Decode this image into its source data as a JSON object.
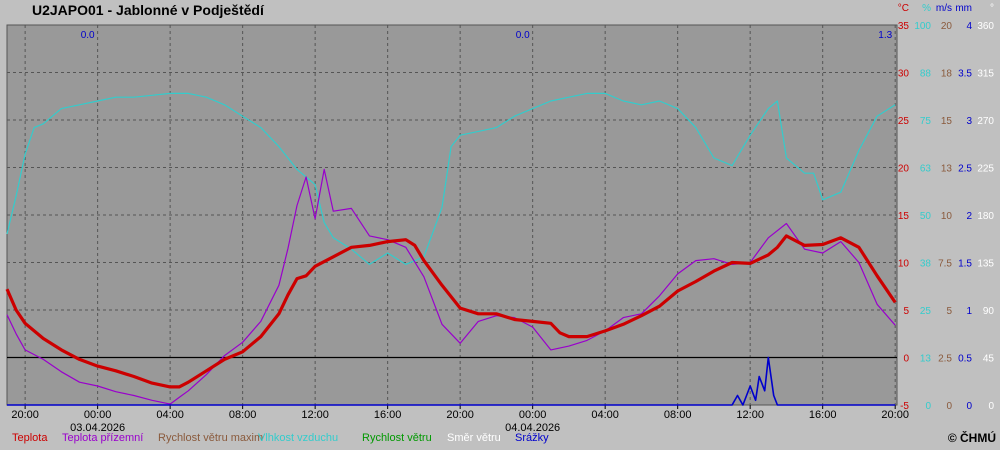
{
  "station": {
    "title": "U2JAPO01 - Jablonné v Podještědí"
  },
  "logo": "© ČHMÚ",
  "chart_data": {
    "type": "line",
    "x_unit": "hours since 2026-04-02 19:00",
    "xlim": [
      0,
      49.1
    ],
    "x_ticks": [
      {
        "x": 1,
        "label": "20:00"
      },
      {
        "x": 5,
        "label": "00:00"
      },
      {
        "x": 9,
        "label": "04:00"
      },
      {
        "x": 13,
        "label": "08:00"
      },
      {
        "x": 17,
        "label": "12:00"
      },
      {
        "x": 21,
        "label": "16:00"
      },
      {
        "x": 25,
        "label": "20:00"
      },
      {
        "x": 29,
        "label": "00:00"
      },
      {
        "x": 33,
        "label": "04:00"
      },
      {
        "x": 37,
        "label": "08:00"
      },
      {
        "x": 41,
        "label": "12:00"
      },
      {
        "x": 45,
        "label": "16:00"
      },
      {
        "x": 49,
        "label": "20:00"
      }
    ],
    "date_labels": [
      {
        "x": 5,
        "label": "03.04.2026"
      },
      {
        "x": 29,
        "label": "04.04.2026"
      }
    ],
    "ylim": [
      -5,
      35
    ],
    "grid": true,
    "precip_totals": [
      {
        "x": 5,
        "label": "0.0"
      },
      {
        "x": 29,
        "label": "0.0"
      },
      {
        "x": 49,
        "label": "1.3"
      }
    ],
    "axis_units": [
      {
        "label": "°C",
        "color": "#cc0000"
      },
      {
        "label": "%",
        "color": "#33cccc"
      },
      {
        "label": "m/s",
        "color": "#0000cc"
      },
      {
        "label": "mm",
        "color": "#0000cc"
      },
      {
        "label": "°",
        "color": "#ffffff"
      }
    ],
    "y_axes": [
      {
        "color": "#cc0000",
        "ticks": [
          "35",
          "30",
          "25",
          "20",
          "15",
          "10",
          "5",
          "0",
          "-5"
        ]
      },
      {
        "color": "#33cccc",
        "ticks": [
          "100",
          "88",
          "75",
          "63",
          "50",
          "38",
          "25",
          "13",
          "0"
        ]
      },
      {
        "color": "#8a5a3c",
        "ticks": [
          "20",
          "18",
          "15",
          "13",
          "10",
          "7.5",
          "5",
          "2.5",
          "0"
        ]
      },
      {
        "color": "#0000cc",
        "ticks": [
          "4",
          "3.5",
          "3",
          "2.5",
          "2",
          "1.5",
          "1",
          "0.5",
          "0"
        ]
      },
      {
        "color": "#ffffff",
        "ticks": [
          "360",
          "315",
          "270",
          "225",
          "180",
          "135",
          "90",
          "45",
          "0"
        ]
      }
    ],
    "zero_line": 0,
    "series": [
      {
        "name": "Teplota",
        "color": "#cc0000",
        "width": 3.2,
        "axis": "temp",
        "points": [
          [
            0,
            7.2
          ],
          [
            0.5,
            5
          ],
          [
            1,
            3.6
          ],
          [
            2,
            2
          ],
          [
            3,
            0.8
          ],
          [
            4,
            -0.2
          ],
          [
            5,
            -0.9
          ],
          [
            6,
            -1.4
          ],
          [
            7,
            -2
          ],
          [
            8,
            -2.7
          ],
          [
            9,
            -3.1
          ],
          [
            9.5,
            -3.1
          ],
          [
            10,
            -2.6
          ],
          [
            11,
            -1.4
          ],
          [
            12,
            -0.2
          ],
          [
            13,
            0.6
          ],
          [
            14,
            2.2
          ],
          [
            15,
            4.6
          ],
          [
            15.5,
            6.6
          ],
          [
            16,
            8.3
          ],
          [
            16.5,
            8.6
          ],
          [
            17,
            9.6
          ],
          [
            18,
            10.6
          ],
          [
            19,
            11.6
          ],
          [
            20,
            11.8
          ],
          [
            21,
            12.2
          ],
          [
            22,
            12.4
          ],
          [
            22.5,
            11.8
          ],
          [
            23,
            10.2
          ],
          [
            24,
            7.6
          ],
          [
            25,
            5.2
          ],
          [
            26,
            4.6
          ],
          [
            27,
            4.6
          ],
          [
            28,
            4
          ],
          [
            29,
            3.8
          ],
          [
            30,
            3.6
          ],
          [
            30.5,
            2.6
          ],
          [
            31,
            2.2
          ],
          [
            32,
            2.2
          ],
          [
            33,
            2.8
          ],
          [
            34,
            3.5
          ],
          [
            35,
            4.4
          ],
          [
            36,
            5.4
          ],
          [
            37,
            7
          ],
          [
            38,
            8
          ],
          [
            39,
            9.1
          ],
          [
            40,
            10
          ],
          [
            41,
            9.9
          ],
          [
            42,
            10.8
          ],
          [
            42.5,
            11.6
          ],
          [
            43,
            12.8
          ],
          [
            44,
            11.8
          ],
          [
            45,
            11.9
          ],
          [
            46,
            12.6
          ],
          [
            47,
            11.6
          ],
          [
            48,
            8.6
          ],
          [
            49,
            5.8
          ]
        ]
      },
      {
        "name": "Teplota přízemní",
        "color": "#9900cc",
        "width": 1.2,
        "axis": "temp",
        "points": [
          [
            0,
            4.5
          ],
          [
            0.5,
            2.5
          ],
          [
            1,
            0.8
          ],
          [
            2,
            -0.2
          ],
          [
            3,
            -1.5
          ],
          [
            4,
            -2.6
          ],
          [
            5,
            -3
          ],
          [
            6,
            -3.6
          ],
          [
            7,
            -4
          ],
          [
            8,
            -4.5
          ],
          [
            9,
            -4.9
          ],
          [
            9.5,
            -4.2
          ],
          [
            10,
            -3.5
          ],
          [
            11,
            -1.8
          ],
          [
            12,
            0.2
          ],
          [
            13,
            1.6
          ],
          [
            14,
            3.8
          ],
          [
            15,
            7.6
          ],
          [
            15.5,
            11.5
          ],
          [
            16,
            16
          ],
          [
            16.5,
            19
          ],
          [
            17,
            14.6
          ],
          [
            17.5,
            19.8
          ],
          [
            18,
            15.4
          ],
          [
            19,
            15.7
          ],
          [
            20,
            12.8
          ],
          [
            21,
            12.4
          ],
          [
            22,
            11.6
          ],
          [
            23,
            8.5
          ],
          [
            24,
            3.5
          ],
          [
            25,
            1.5
          ],
          [
            26,
            3.8
          ],
          [
            27,
            4.4
          ],
          [
            28,
            4.2
          ],
          [
            29,
            3.2
          ],
          [
            30,
            0.8
          ],
          [
            31,
            1.2
          ],
          [
            32,
            1.8
          ],
          [
            33,
            2.8
          ],
          [
            34,
            4.2
          ],
          [
            35,
            4.6
          ],
          [
            36,
            6.5
          ],
          [
            37,
            8.8
          ],
          [
            38,
            10.2
          ],
          [
            39,
            10.4
          ],
          [
            40,
            9.8
          ],
          [
            41,
            10
          ],
          [
            42,
            12.6
          ],
          [
            43,
            14.1
          ],
          [
            44,
            11.4
          ],
          [
            45,
            11
          ],
          [
            46,
            12.2
          ],
          [
            47,
            10
          ],
          [
            48,
            5.6
          ],
          [
            49,
            3.4
          ]
        ]
      },
      {
        "name": "Rychlost větru maxim",
        "color": "#8a5a3c",
        "width": 1,
        "axis": "temp",
        "points": []
      },
      {
        "name": "Vlhkost vzduchu",
        "color": "#33cccc",
        "width": 1.2,
        "axis": "humidity",
        "points": [
          [
            0,
            45
          ],
          [
            0.5,
            55
          ],
          [
            1,
            66
          ],
          [
            1.5,
            73
          ],
          [
            2,
            74
          ],
          [
            3,
            78
          ],
          [
            4,
            79
          ],
          [
            5,
            80
          ],
          [
            6,
            81
          ],
          [
            7,
            81
          ],
          [
            8,
            81.5
          ],
          [
            9,
            82
          ],
          [
            10,
            82
          ],
          [
            11,
            81
          ],
          [
            12,
            79
          ],
          [
            13,
            76
          ],
          [
            14,
            73
          ],
          [
            15,
            68
          ],
          [
            16,
            62
          ],
          [
            17,
            58
          ],
          [
            17.5,
            48
          ],
          [
            18,
            44
          ],
          [
            19,
            41
          ],
          [
            20,
            37
          ],
          [
            21,
            40
          ],
          [
            22,
            37
          ],
          [
            23,
            39
          ],
          [
            24,
            52
          ],
          [
            24.5,
            68
          ],
          [
            25,
            71
          ],
          [
            26,
            72
          ],
          [
            27,
            73
          ],
          [
            28,
            76
          ],
          [
            29,
            78
          ],
          [
            30,
            80
          ],
          [
            31,
            81
          ],
          [
            32,
            82
          ],
          [
            33,
            82
          ],
          [
            34,
            80
          ],
          [
            35,
            79
          ],
          [
            36,
            80
          ],
          [
            37,
            78
          ],
          [
            38,
            73
          ],
          [
            39,
            65
          ],
          [
            40,
            63
          ],
          [
            41,
            71
          ],
          [
            42,
            78
          ],
          [
            42.5,
            80
          ],
          [
            43,
            65
          ],
          [
            44,
            61
          ],
          [
            44.5,
            61
          ],
          [
            45,
            54
          ],
          [
            46,
            56
          ],
          [
            47,
            67
          ],
          [
            48,
            76
          ],
          [
            49,
            79
          ]
        ]
      },
      {
        "name": "Rychlost větru",
        "color": "#009900",
        "width": 1,
        "axis": "humidity",
        "points": []
      },
      {
        "name": "Směr větru",
        "color": "#ffffff",
        "width": 1,
        "axis": "humidity",
        "points": []
      },
      {
        "name": "Srážky",
        "color": "#0000cc",
        "width": 1.6,
        "axis": "precip",
        "points": [
          [
            0,
            0
          ],
          [
            40,
            0
          ],
          [
            40.3,
            0.1
          ],
          [
            40.6,
            0
          ],
          [
            41,
            0.2
          ],
          [
            41.3,
            0.05
          ],
          [
            41.5,
            0.3
          ],
          [
            41.8,
            0.15
          ],
          [
            42,
            0.5
          ],
          [
            42.3,
            0.1
          ],
          [
            42.5,
            0
          ],
          [
            49,
            0
          ]
        ]
      }
    ]
  },
  "legend": [
    {
      "label": "Teplota",
      "color": "#cc0000"
    },
    {
      "label": "Teplota přízemní",
      "color": "#9900cc"
    },
    {
      "label": "Rychlost větru maxim",
      "color": "#8a5a3c"
    },
    {
      "label": "Vlhkost vzduchu",
      "color": "#33cccc"
    },
    {
      "label": "Rychlost větru",
      "color": "#009900"
    },
    {
      "label": "Směr  větru",
      "color": "#ffffff"
    },
    {
      "label": "Srážky",
      "color": "#0000cc"
    }
  ]
}
